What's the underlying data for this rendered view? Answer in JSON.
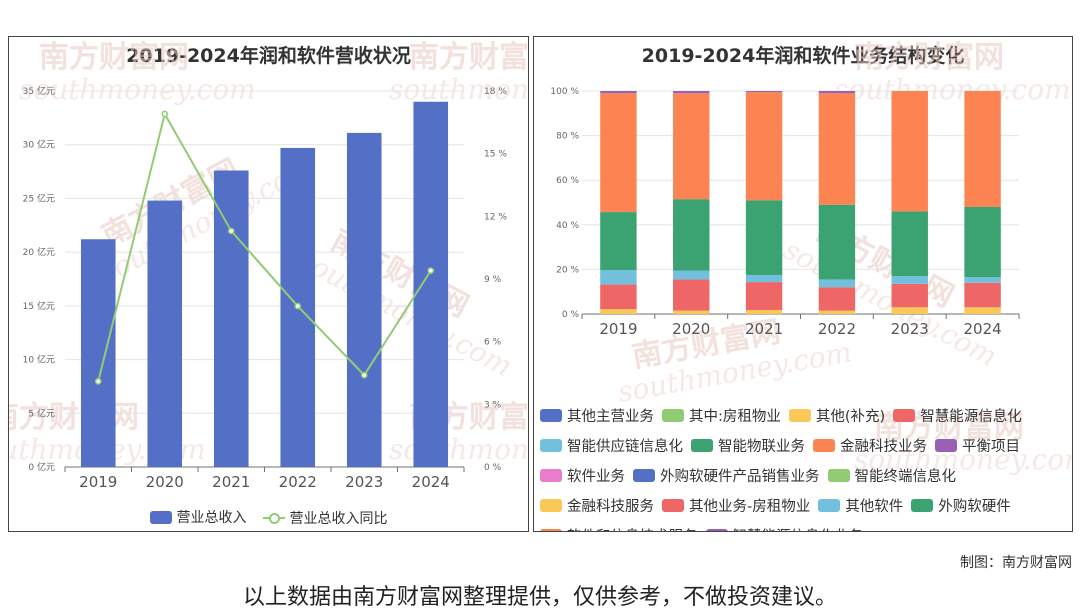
{
  "chart_data": [
    {
      "type": "bar",
      "title": "2019-2024年润和软件营收状况",
      "categories": [
        "2019",
        "2020",
        "2021",
        "2022",
        "2023",
        "2024"
      ],
      "series": [
        {
          "name": "营业总收入",
          "type": "bar",
          "axis": "left",
          "values": [
            21.2,
            24.8,
            27.6,
            29.7,
            31.1,
            34.0
          ]
        },
        {
          "name": "营业总收入同比",
          "type": "line",
          "axis": "right",
          "values": [
            4.1,
            16.9,
            11.3,
            7.7,
            4.4,
            9.4
          ]
        }
      ],
      "ylim_left": [
        0,
        35
      ],
      "yticks_left": [
        "0 亿元",
        "5 亿元",
        "10 亿元",
        "15 亿元",
        "20 亿元",
        "25 亿元",
        "30 亿元",
        "35 亿元"
      ],
      "ylim_right": [
        0,
        18
      ],
      "yticks_right": [
        "0 %",
        "3 %",
        "6 %",
        "9 %",
        "12 %",
        "15 %",
        "18 %"
      ],
      "legend": "bottom",
      "colors": {
        "bar": "#5470c6",
        "line": "#91cc75"
      }
    },
    {
      "type": "bar",
      "stacked": true,
      "title": "2019-2024年润和软件业务结构变化",
      "categories": [
        "2019",
        "2020",
        "2021",
        "2022",
        "2023",
        "2024"
      ],
      "ylim": [
        0,
        100
      ],
      "yticks": [
        "0 %",
        "20 %",
        "40 %",
        "60 %",
        "80 %",
        "100 %"
      ],
      "legend": "bottom",
      "legend_items": [
        {
          "name": "其他主营业务",
          "color": "#5470c6"
        },
        {
          "name": "其中:房租物业",
          "color": "#91cc75"
        },
        {
          "name": "其他(补充)",
          "color": "#fac858"
        },
        {
          "name": "智慧能源信息化",
          "color": "#ee6666"
        },
        {
          "name": "智能供应链信息化",
          "color": "#73c0de"
        },
        {
          "name": "智能物联业务",
          "color": "#3ba272"
        },
        {
          "name": "金融科技业务",
          "color": "#fc8452"
        },
        {
          "name": "平衡项目",
          "color": "#9a60b4"
        },
        {
          "name": "软件业务",
          "color": "#ea7ccc"
        },
        {
          "name": "外购软硬件产品销售业务",
          "color": "#5470c6"
        },
        {
          "name": "智能终端信息化",
          "color": "#91cc75"
        },
        {
          "name": "金融科技服务",
          "color": "#fac858"
        },
        {
          "name": "其他业务-房租物业",
          "color": "#ee6666"
        },
        {
          "name": "其他软件",
          "color": "#73c0de"
        },
        {
          "name": "外购软硬件",
          "color": "#3ba272"
        },
        {
          "name": "软件和信息技术服务",
          "color": "#fc8452"
        },
        {
          "name": "智慧能源信息化业务",
          "color": "#9a60b4"
        }
      ],
      "series": [
        {
          "name": "其他(补充)",
          "color": "#fac858",
          "values": [
            2.2,
            1.5,
            1.8,
            1.5,
            3.0,
            3.0
          ]
        },
        {
          "name": "智慧能源信息化",
          "color": "#ee6666",
          "values": [
            11.0,
            14.0,
            12.5,
            10.5,
            10.5,
            11.0
          ]
        },
        {
          "name": "智能供应链信息化",
          "color": "#73c0de",
          "values": [
            6.5,
            4.0,
            3.2,
            3.5,
            3.5,
            2.5
          ]
        },
        {
          "name": "智能物联业务",
          "color": "#3ba272",
          "values": [
            26.0,
            32.0,
            33.5,
            33.5,
            29.0,
            31.5
          ]
        },
        {
          "name": "金融科技业务",
          "color": "#fc8452",
          "values": [
            53.3,
            47.5,
            48.5,
            50.0,
            54.0,
            52.0
          ]
        },
        {
          "name": "平衡项目",
          "color": "#9a60b4",
          "values": [
            1.0,
            1.0,
            0.5,
            1.0,
            0,
            0
          ]
        }
      ]
    }
  ],
  "watermark": {
    "cn": "南方财富网",
    "en": "southmoney.com"
  },
  "credit": "制图：南方财富网",
  "disclaimer": "以上数据由南方财富网整理提供，仅供参考，不做投资建议。"
}
